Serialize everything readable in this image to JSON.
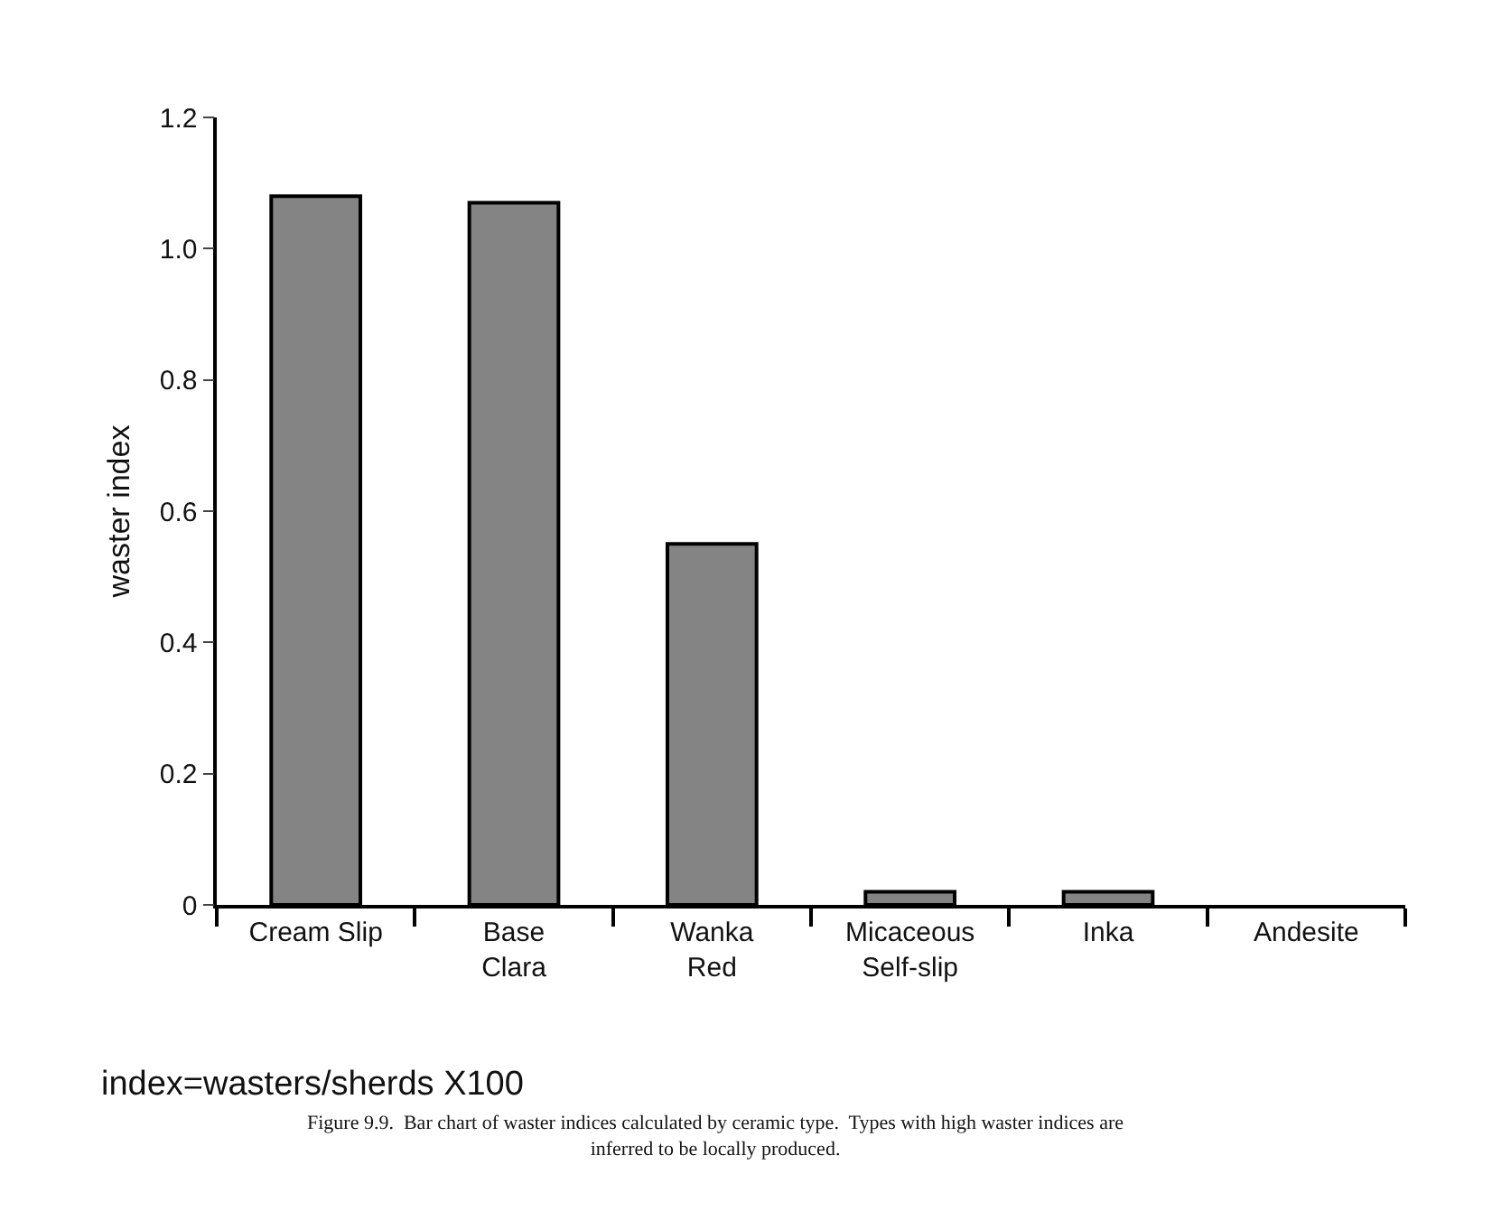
{
  "chart_data": {
    "type": "bar",
    "ylabel": "waster index",
    "categories": [
      "Cream Slip",
      "Base\nClara",
      "Wanka\nRed",
      "Micaceous\nSelf-slip",
      "Inka",
      "Andesite"
    ],
    "values": [
      1.08,
      1.07,
      0.55,
      0.02,
      0.02,
      0
    ],
    "color": "#848484",
    "ylim": [
      0,
      1.2
    ],
    "yticks": [
      0,
      0.2,
      0.4,
      0.6,
      0.8,
      {
        "value": 1,
        "label": "1.0"
      },
      1.2
    ],
    "grid": false,
    "annotations": [
      "index=wasters/sherds X100",
      "Figure 9.9.  Bar chart of waster indices calculated by ceramic type.  Types with high waster indices are\ninferred to be locally produced."
    ]
  }
}
